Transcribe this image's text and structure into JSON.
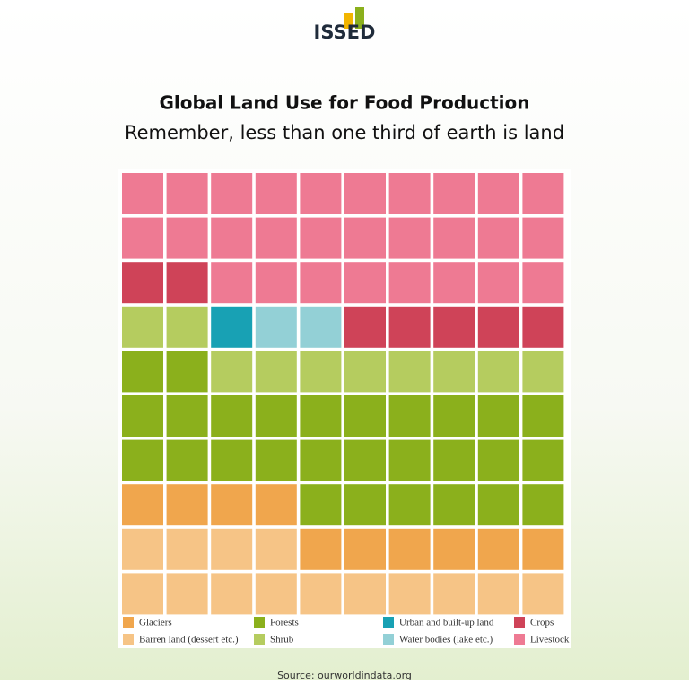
{
  "logo": "ISSED",
  "chart_data": {
    "type": "waffle",
    "title": "Global Land Use for Food Production",
    "subtitle": "Remember, less than one third of earth is land",
    "categories": [
      "Glaciers",
      "Barren land (dessert etc.)",
      "Forests",
      "Shrub",
      "Urban and built-up land",
      "Water bodies (lake etc.)",
      "Crops",
      "Livestock"
    ],
    "values": [
      10,
      14,
      28,
      10,
      1,
      2,
      7,
      28
    ],
    "colors": [
      "#f0a64d",
      "#f6c486",
      "#8bb01c",
      "#b5cc5f",
      "#18a1b4",
      "#93d0d6",
      "#cf4358",
      "#ee7a93"
    ]
  },
  "source": "Source: ourworldindata.org"
}
